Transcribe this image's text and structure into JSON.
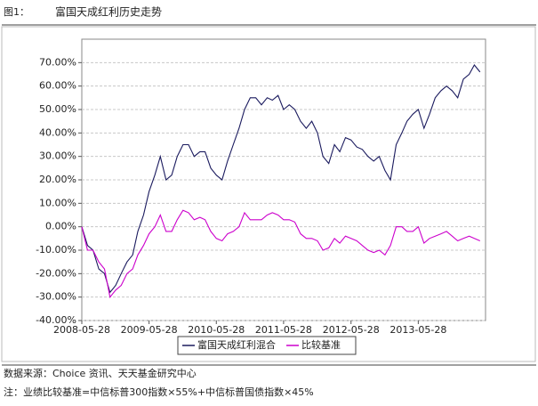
{
  "header": {
    "label": "图1：",
    "title": "富国天成红利历史走势"
  },
  "chart_data": {
    "type": "line",
    "x": [
      "2008-05-28",
      "2008-06-28",
      "2008-07-28",
      "2008-08-28",
      "2008-09-28",
      "2008-10-28",
      "2008-11-28",
      "2008-12-28",
      "2009-01-28",
      "2009-02-28",
      "2009-03-28",
      "2009-04-28",
      "2009-05-28",
      "2009-06-28",
      "2009-07-28",
      "2009-08-28",
      "2009-09-28",
      "2009-10-28",
      "2009-11-28",
      "2009-12-28",
      "2010-01-28",
      "2010-02-28",
      "2010-03-28",
      "2010-04-28",
      "2010-05-28",
      "2010-06-28",
      "2010-07-28",
      "2010-08-28",
      "2010-09-28",
      "2010-10-28",
      "2010-11-28",
      "2010-12-28",
      "2011-01-28",
      "2011-02-28",
      "2011-03-28",
      "2011-04-28",
      "2011-05-28",
      "2011-06-28",
      "2011-07-28",
      "2011-08-28",
      "2011-09-28",
      "2011-10-28",
      "2011-11-28",
      "2011-12-28",
      "2012-01-28",
      "2012-02-28",
      "2012-03-28",
      "2012-04-28",
      "2012-05-28",
      "2012-06-28",
      "2012-07-28",
      "2012-08-28",
      "2012-09-28",
      "2012-10-28",
      "2012-11-28",
      "2012-12-28",
      "2013-01-28",
      "2013-02-28",
      "2013-03-28",
      "2013-04-28",
      "2013-05-28",
      "2013-06-28",
      "2013-07-28",
      "2013-08-28",
      "2013-09-28",
      "2013-10-28",
      "2013-11-28",
      "2013-12-28",
      "2014-01-28",
      "2014-02-28",
      "2014-03-28",
      "2014-04-28"
    ],
    "series": [
      {
        "name": "富国天成红利混合",
        "color": "#1a1a5e",
        "values": [
          0,
          -8,
          -10,
          -18,
          -20,
          -28,
          -25,
          -20,
          -15,
          -12,
          -2,
          5,
          15,
          22,
          30,
          20,
          22,
          30,
          35,
          35,
          30,
          32,
          32,
          25,
          22,
          20,
          28,
          35,
          42,
          50,
          55,
          55,
          52,
          55,
          54,
          56,
          50,
          52,
          50,
          45,
          42,
          45,
          40,
          30,
          27,
          35,
          32,
          38,
          37,
          34,
          33,
          30,
          28,
          30,
          24,
          20,
          35,
          40,
          45,
          48,
          50,
          42,
          48,
          55,
          58,
          60,
          58,
          55,
          63,
          65,
          69,
          66
        ]
      },
      {
        "name": "比较基准",
        "color": "#cc00cc",
        "values": [
          0,
          -10,
          -10,
          -15,
          -18,
          -30,
          -27,
          -25,
          -20,
          -18,
          -12,
          -8,
          -3,
          0,
          5,
          -2,
          -2,
          3,
          7,
          6,
          3,
          4,
          3,
          -2,
          -5,
          -6,
          -3,
          -2,
          0,
          6,
          3,
          3,
          3,
          5,
          6,
          5,
          3,
          3,
          2,
          -3,
          -5,
          -5,
          -6,
          -10,
          -9,
          -5,
          -7,
          -4,
          -5,
          -6,
          -8,
          -10,
          -11,
          -10,
          -12,
          -8,
          0,
          0,
          -2,
          -2,
          0,
          -7,
          -5,
          -4,
          -3,
          -2,
          -4,
          -6,
          -5,
          -4,
          -5,
          -6
        ]
      }
    ],
    "xlim": [
      "2008-05-28",
      "2014-05-28"
    ],
    "xticks": [
      "2008-05-28",
      "2009-05-28",
      "2010-05-28",
      "2011-05-28",
      "2012-05-28",
      "2013-05-28"
    ],
    "ylim": [
      -40,
      80
    ],
    "yticks": [
      {
        "value": -40,
        "label": "-40.00%"
      },
      {
        "value": -30,
        "label": "-30.00%"
      },
      {
        "value": -20,
        "label": "-20.00%"
      },
      {
        "value": -10,
        "label": "-10.00%"
      },
      {
        "value": 0,
        "label": "0.00%"
      },
      {
        "value": 10,
        "label": "10.00%"
      },
      {
        "value": 20,
        "label": "20.00%"
      },
      {
        "value": 30,
        "label": "30.00%"
      },
      {
        "value": 40,
        "label": "40.00%"
      },
      {
        "value": 50,
        "label": "50.00%"
      },
      {
        "value": 60,
        "label": "60.00%"
      },
      {
        "value": 70,
        "label": "70.00%"
      }
    ],
    "grid": true,
    "legend": "bottom"
  },
  "notes": {
    "source": "数据来源：Choice 资讯、天天基金研究中心",
    "benchmark": "注：业绩比较基准=中信标普300指数×55%+中信标普国债指数×45%"
  }
}
